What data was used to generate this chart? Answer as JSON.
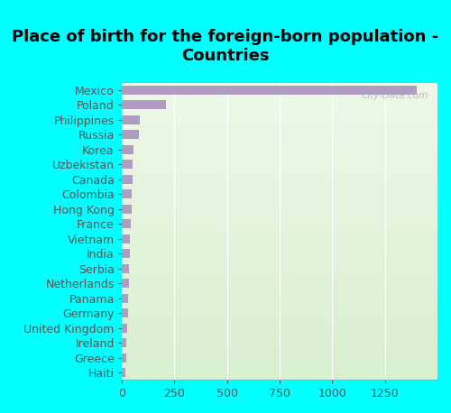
{
  "title": "Place of birth for the foreign-born population -\nCountries",
  "countries": [
    "Mexico",
    "Poland",
    "Philippines",
    "Russia",
    "Korea",
    "Uzbekistan",
    "Canada",
    "Colombia",
    "Hong Kong",
    "France",
    "Vietnam",
    "India",
    "Serbia",
    "Netherlands",
    "Panama",
    "Germany",
    "United Kingdom",
    "Ireland",
    "Greece",
    "Haiti"
  ],
  "values": [
    1400,
    210,
    85,
    80,
    55,
    50,
    50,
    48,
    45,
    42,
    40,
    38,
    35,
    33,
    30,
    28,
    25,
    22,
    20,
    18
  ],
  "bar_color": "#b09cc0",
  "background_color": "#00ffff",
  "grad_color_left": "#d8efd0",
  "grad_color_right": "#eef8e8",
  "xticks": [
    0,
    250,
    500,
    750,
    1000,
    1250
  ],
  "xlim": [
    0,
    1500
  ],
  "title_fontsize": 13,
  "label_fontsize": 9,
  "tick_fontsize": 9,
  "watermark": "City-Data.com"
}
